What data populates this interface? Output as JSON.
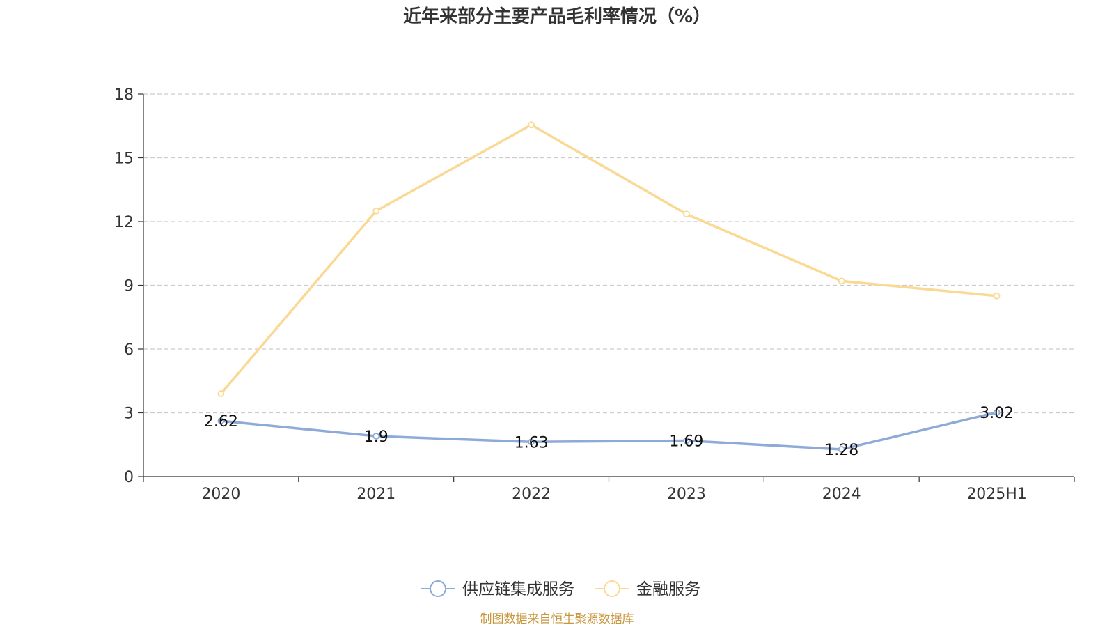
{
  "chart_data": {
    "type": "line",
    "title": "近年来部分主要产品毛利率情况（%）",
    "categories": [
      "2020",
      "2021",
      "2022",
      "2023",
      "2024",
      "2025H1"
    ],
    "ylim": [
      0,
      18
    ],
    "yticks": [
      "0",
      "3",
      "6",
      "9",
      "12",
      "15",
      "18"
    ],
    "grid": true,
    "legend_position": "bottom",
    "series": [
      {
        "name": "供应链集成服务",
        "color": "#8eaad8",
        "values": [
          2.62,
          1.9,
          1.63,
          1.69,
          1.28,
          3.02
        ],
        "labels": [
          "2.62",
          "1.9",
          "1.63",
          "1.69",
          "1.28",
          "3.02"
        ]
      },
      {
        "name": "金融服务",
        "color": "#fad994",
        "values": [
          3.9,
          12.5,
          16.55,
          12.35,
          9.2,
          8.5
        ]
      }
    ]
  },
  "source_note": "制图数据来自恒生聚源数据库",
  "source_color": "#c8963c"
}
